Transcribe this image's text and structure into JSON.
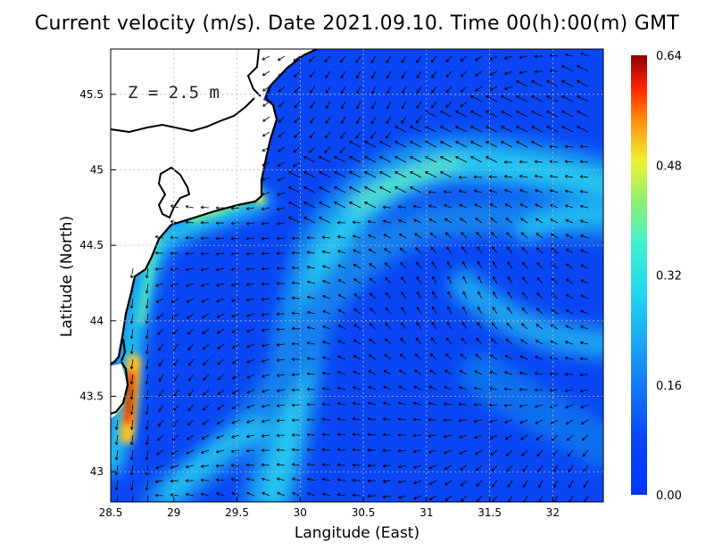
{
  "title": "Current velocity (m/s). Date 2021.09.10. Time 00(h):00(m) GMT",
  "depth_label": "Z = 2.5 m",
  "colors": {
    "sea_low": "#0a46f5",
    "sea_mid": "#12a8f0",
    "jet": "#30e0e0",
    "land": "#ffffff",
    "coastline": "#000000",
    "grid": "#b0b0b0"
  },
  "chart_data": {
    "type": "heatmap",
    "xlabel": "Langitude (East)",
    "ylabel": "Latitude (North)",
    "xlim": [
      28.5,
      32.4
    ],
    "ylim": [
      42.8,
      45.8
    ],
    "x_ticks": [
      "28.5",
      "29",
      "29.5",
      "30",
      "30.5",
      "31",
      "31.5",
      "32"
    ],
    "y_ticks": [
      "43",
      "43.5",
      "44",
      "44.5",
      "45",
      "45.5"
    ],
    "grid": "dotted",
    "colorbar": {
      "min": 0.0,
      "max": 0.64,
      "ticks": [
        "0.00",
        "0.16",
        "0.32",
        "0.48",
        "0.64"
      ],
      "colormap": "jet"
    },
    "vector_field": "current velocity arrows"
  }
}
